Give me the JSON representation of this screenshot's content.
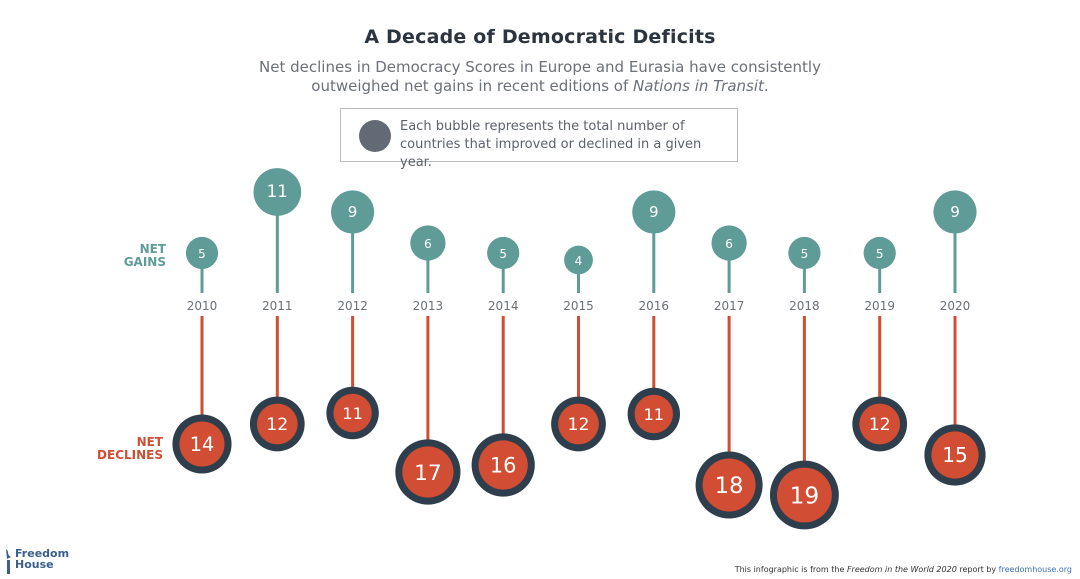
{
  "header": {
    "title": "A Decade of Democratic Deficits",
    "subtitle_line1": "Net declines in Democracy Scores in Europe and Eurasia have consistently",
    "subtitle_line2_prefix": "outweighed net gains in recent editions of ",
    "subtitle_line2_italic": "Nations in Transit",
    "subtitle_line2_suffix": "."
  },
  "legend": {
    "line1": "Each bubble represents the total number of",
    "line2": "countries that improved or declined in a given year."
  },
  "row_labels": {
    "gains_line1": "NET",
    "gains_line2": "GAINS",
    "declines_line1": "NET",
    "declines_line2": "DECLINES"
  },
  "colors": {
    "gains": "#5f9c98",
    "declines": "#d14d33",
    "declines_ring": "#2f3e4c",
    "year_label": "#6b7079",
    "legend_bubble": "#636975"
  },
  "footer": {
    "logo_line1": "Freedom",
    "logo_line2": "House",
    "note_prefix": "This infographic is from the ",
    "note_italic": "Freedom in the World 2020",
    "note_middle": " report by ",
    "note_link": "freedomhouse.org"
  },
  "chart_data": {
    "type": "bubble-lollipop",
    "title": "A Decade of Democratic Deficits",
    "categories": [
      "2010",
      "2011",
      "2012",
      "2013",
      "2014",
      "2015",
      "2016",
      "2017",
      "2018",
      "2019",
      "2020"
    ],
    "series": [
      {
        "name": "Net Gains",
        "direction": "up",
        "values": [
          5,
          11,
          9,
          6,
          5,
          4,
          9,
          6,
          5,
          5,
          9
        ]
      },
      {
        "name": "Net Declines",
        "direction": "down",
        "values": [
          14,
          12,
          11,
          17,
          16,
          12,
          11,
          18,
          19,
          12,
          15
        ]
      }
    ],
    "legend": "Each bubble represents the total number of countries that improved or declined in a given year.",
    "xlabel": "",
    "ylabel": ""
  }
}
